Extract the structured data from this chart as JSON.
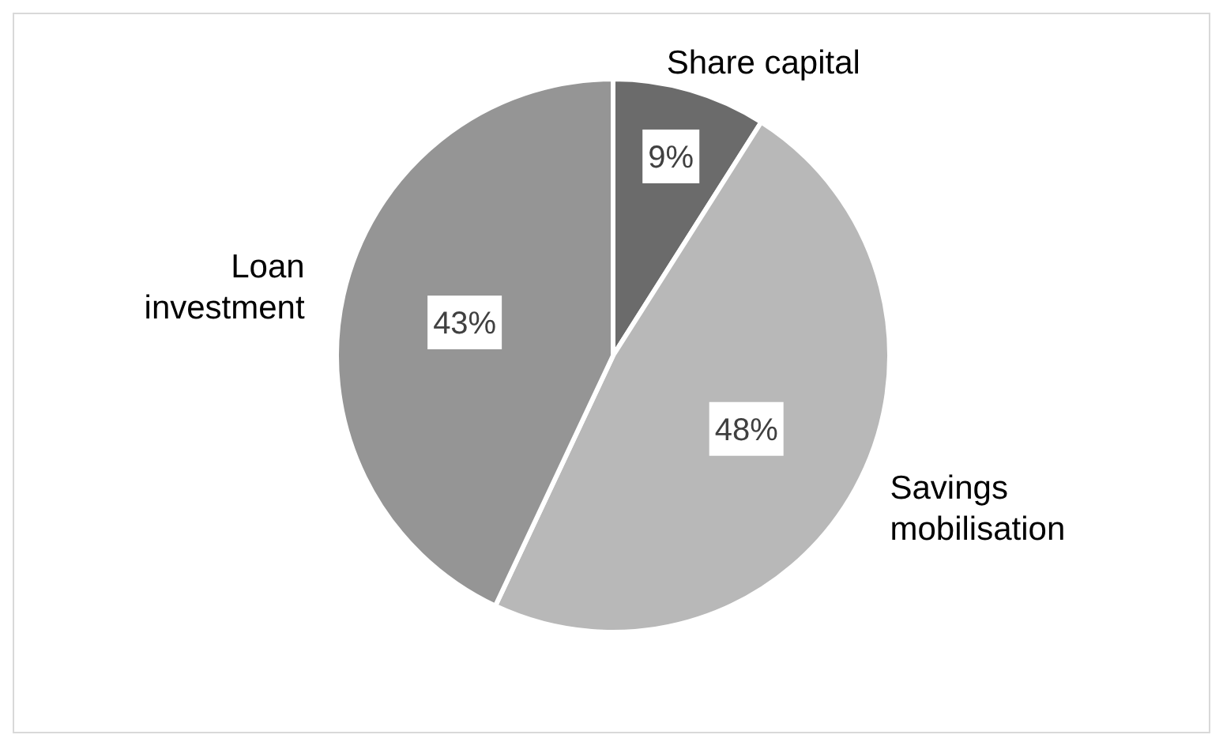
{
  "chart_data": {
    "type": "pie",
    "categories": [
      "Share capital",
      "Savings mobilisation",
      "Loan investment"
    ],
    "values": [
      9,
      48,
      43
    ],
    "colors": [
      "#6b6b6b",
      "#b8b8b8",
      "#959595"
    ],
    "value_labels": [
      "9%",
      "48%",
      "43%"
    ]
  }
}
